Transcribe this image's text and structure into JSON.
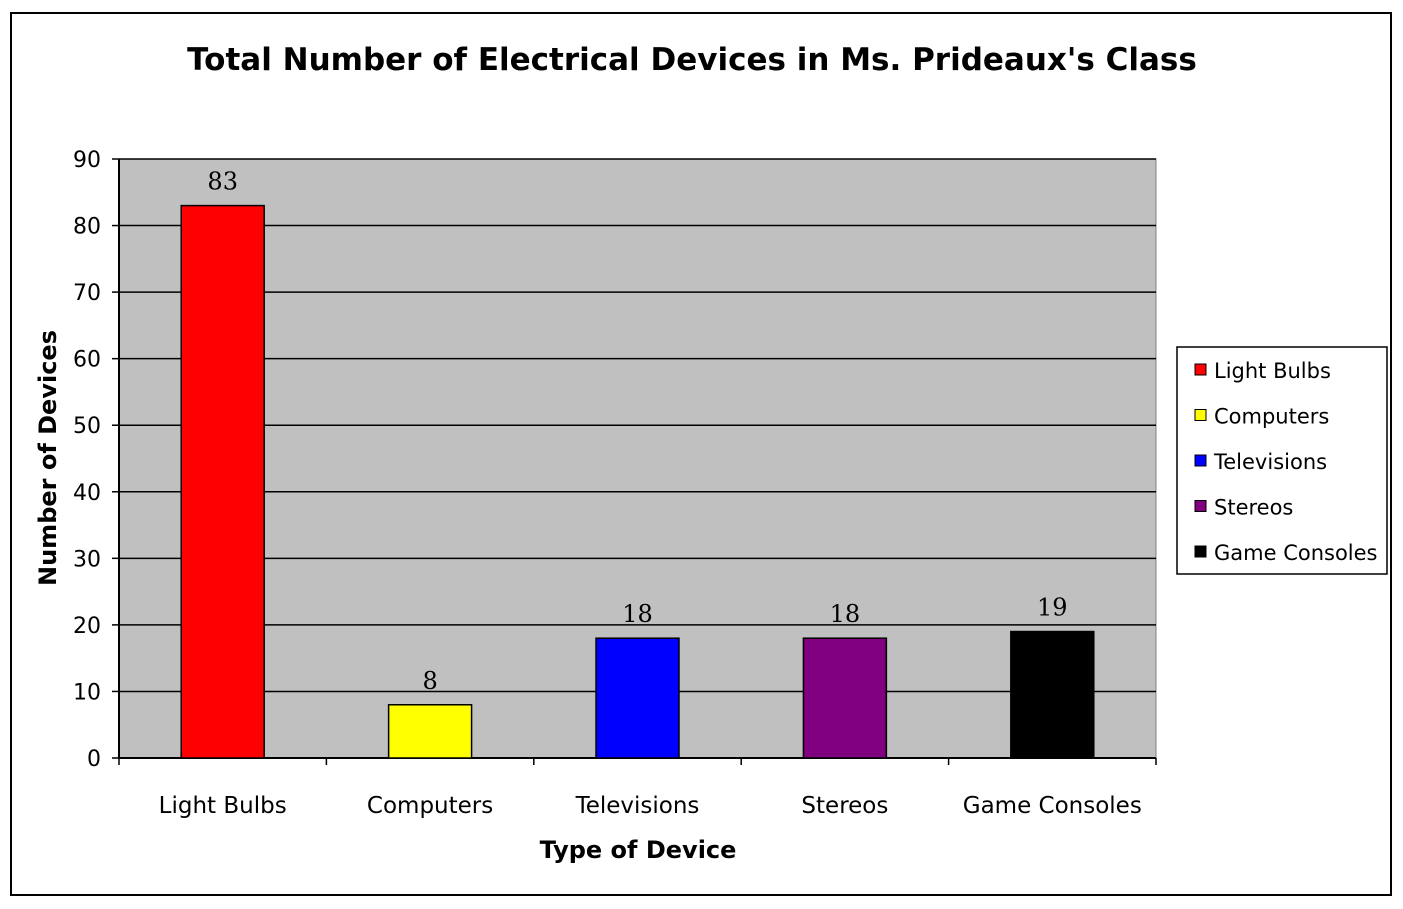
{
  "chart_data": {
    "type": "bar",
    "title": "Total Number of Electrical Devices in Ms. Prideaux's Class",
    "xlabel": "Type of Device",
    "ylabel": "Number of Devices",
    "categories": [
      "Light Bulbs",
      "Computers",
      "Televisions",
      "Stereos",
      "Game Consoles"
    ],
    "values": [
      83,
      8,
      18,
      18,
      19
    ],
    "colors": [
      "#ff0000",
      "#ffff00",
      "#0000ff",
      "#800080",
      "#000000"
    ],
    "ylim": [
      0,
      90
    ],
    "yticks": [
      0,
      10,
      20,
      30,
      40,
      50,
      60,
      70,
      80,
      90
    ],
    "grid": true,
    "plot_background": "#c0c0c0",
    "legend": {
      "position": "right",
      "entries": [
        "Light Bulbs",
        "Computers",
        "Televisions",
        "Stereos",
        "Game Consoles"
      ]
    }
  }
}
